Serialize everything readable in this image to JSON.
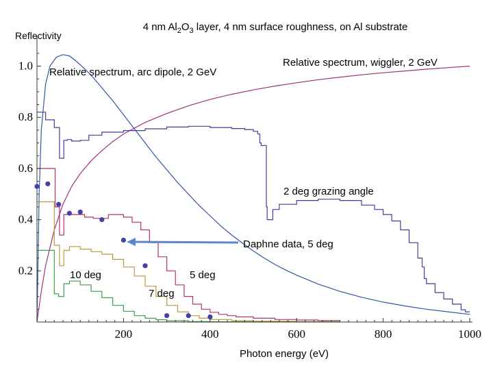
{
  "chart_data": {
    "type": "line",
    "title_parts": [
      "4 nm Al",
      "2",
      "O",
      "3",
      " layer, 4 nm surface roughness, on Al substrate"
    ],
    "xlabel": "Photon energy (eV)",
    "ylabel": "Reflectivity",
    "xlim": [
      0,
      1000
    ],
    "ylim": [
      0,
      1.05
    ],
    "x_ticks": [
      200,
      400,
      600,
      800,
      1000
    ],
    "y_ticks": [
      0.2,
      0.4,
      0.6,
      0.8,
      1.0
    ],
    "x_tick_labels": [
      "200",
      "400",
      "600",
      "800",
      "1000"
    ],
    "y_tick_labels": [
      "0.2",
      "0.4",
      "0.6",
      "0.8",
      "1.0"
    ],
    "grid": false,
    "series": [
      {
        "key": "dipole",
        "color": "#3355a6",
        "points": [
          [
            0,
            0
          ],
          [
            5,
            0.5
          ],
          [
            10,
            0.75
          ],
          [
            20,
            0.93
          ],
          [
            30,
            1.0
          ],
          [
            45,
            1.035
          ],
          [
            60,
            1.045
          ],
          [
            75,
            1.04
          ],
          [
            90,
            1.02
          ],
          [
            110,
            0.99
          ],
          [
            130,
            0.955
          ],
          [
            150,
            0.915
          ],
          [
            175,
            0.865
          ],
          [
            200,
            0.81
          ],
          [
            225,
            0.755
          ],
          [
            250,
            0.7
          ],
          [
            275,
            0.645
          ],
          [
            300,
            0.595
          ],
          [
            325,
            0.545
          ],
          [
            350,
            0.5
          ],
          [
            375,
            0.455
          ],
          [
            400,
            0.415
          ],
          [
            425,
            0.375
          ],
          [
            450,
            0.34
          ],
          [
            475,
            0.308
          ],
          [
            500,
            0.278
          ],
          [
            525,
            0.25
          ],
          [
            550,
            0.225
          ],
          [
            575,
            0.203
          ],
          [
            600,
            0.183
          ],
          [
            650,
            0.148
          ],
          [
            700,
            0.12
          ],
          [
            750,
            0.097
          ],
          [
            800,
            0.078
          ],
          [
            850,
            0.063
          ],
          [
            900,
            0.05
          ],
          [
            950,
            0.04
          ],
          [
            1000,
            0.03
          ]
        ]
      },
      {
        "key": "wiggler",
        "color": "#a0307a",
        "points": [
          [
            0,
            0
          ],
          [
            10,
            0.12
          ],
          [
            20,
            0.22
          ],
          [
            40,
            0.36
          ],
          [
            60,
            0.46
          ],
          [
            80,
            0.53
          ],
          [
            100,
            0.58
          ],
          [
            125,
            0.63
          ],
          [
            150,
            0.67
          ],
          [
            175,
            0.705
          ],
          [
            200,
            0.735
          ],
          [
            250,
            0.78
          ],
          [
            300,
            0.815
          ],
          [
            350,
            0.845
          ],
          [
            400,
            0.87
          ],
          [
            450,
            0.89
          ],
          [
            500,
            0.907
          ],
          [
            550,
            0.922
          ],
          [
            600,
            0.935
          ],
          [
            650,
            0.947
          ],
          [
            700,
            0.957
          ],
          [
            750,
            0.966
          ],
          [
            800,
            0.974
          ],
          [
            850,
            0.981
          ],
          [
            900,
            0.988
          ],
          [
            950,
            0.994
          ],
          [
            1000,
            1.0
          ]
        ]
      },
      {
        "key": "grazing2",
        "color": "#3f3f99",
        "step": true,
        "points": [
          [
            0,
            0.82
          ],
          [
            15,
            0.82
          ],
          [
            20,
            0.79
          ],
          [
            40,
            0.76
          ],
          [
            50,
            0.76
          ],
          [
            52,
            0.64
          ],
          [
            60,
            0.64
          ],
          [
            62,
            0.71
          ],
          [
            70,
            0.713
          ],
          [
            80,
            0.707
          ],
          [
            100,
            0.71
          ],
          [
            120,
            0.73
          ],
          [
            150,
            0.742
          ],
          [
            200,
            0.748
          ],
          [
            250,
            0.755
          ],
          [
            300,
            0.762
          ],
          [
            350,
            0.765
          ],
          [
            400,
            0.76
          ],
          [
            450,
            0.756
          ],
          [
            480,
            0.752
          ],
          [
            500,
            0.745
          ],
          [
            510,
            0.735
          ],
          [
            515,
            0.7
          ],
          [
            518,
            0.69
          ],
          [
            525,
            0.69
          ],
          [
            530,
            0.45
          ],
          [
            532,
            0.4
          ],
          [
            540,
            0.4
          ],
          [
            545,
            0.44
          ],
          [
            560,
            0.46
          ],
          [
            600,
            0.475
          ],
          [
            650,
            0.48
          ],
          [
            700,
            0.475
          ],
          [
            750,
            0.457
          ],
          [
            780,
            0.44
          ],
          [
            800,
            0.42
          ],
          [
            820,
            0.395
          ],
          [
            840,
            0.36
          ],
          [
            860,
            0.31
          ],
          [
            880,
            0.25
          ],
          [
            890,
            0.215
          ],
          [
            895,
            0.17
          ],
          [
            900,
            0.15
          ],
          [
            920,
            0.115
          ],
          [
            940,
            0.09
          ],
          [
            960,
            0.07
          ],
          [
            980,
            0.048
          ],
          [
            990,
            0.04
          ],
          [
            1000,
            0.04
          ]
        ]
      },
      {
        "key": "deg5",
        "color": "#b2336a",
        "step": true,
        "points": [
          [
            0,
            0.6
          ],
          [
            40,
            0.6
          ],
          [
            42,
            0.45
          ],
          [
            50,
            0.45
          ],
          [
            52,
            0.34
          ],
          [
            60,
            0.34
          ],
          [
            62,
            0.42
          ],
          [
            80,
            0.42
          ],
          [
            110,
            0.41
          ],
          [
            130,
            0.405
          ],
          [
            150,
            0.405
          ],
          [
            165,
            0.42
          ],
          [
            180,
            0.42
          ],
          [
            200,
            0.41
          ],
          [
            220,
            0.39
          ],
          [
            240,
            0.36
          ],
          [
            260,
            0.31
          ],
          [
            280,
            0.255
          ],
          [
            300,
            0.2
          ],
          [
            320,
            0.145
          ],
          [
            340,
            0.1
          ],
          [
            360,
            0.07
          ],
          [
            380,
            0.05
          ],
          [
            400,
            0.038
          ],
          [
            420,
            0.03
          ],
          [
            440,
            0.025
          ],
          [
            460,
            0.02
          ],
          [
            500,
            0.015
          ],
          [
            550,
            0.01
          ],
          [
            600,
            0.008
          ],
          [
            650,
            0.006
          ],
          [
            700,
            0.005
          ]
        ]
      },
      {
        "key": "deg7",
        "color": "#b59a3a",
        "step": true,
        "points": [
          [
            0,
            0.47
          ],
          [
            38,
            0.47
          ],
          [
            40,
            0.3
          ],
          [
            50,
            0.3
          ],
          [
            52,
            0.22
          ],
          [
            60,
            0.22
          ],
          [
            62,
            0.28
          ],
          [
            75,
            0.295
          ],
          [
            100,
            0.285
          ],
          [
            125,
            0.275
          ],
          [
            150,
            0.265
          ],
          [
            175,
            0.245
          ],
          [
            200,
            0.215
          ],
          [
            225,
            0.18
          ],
          [
            250,
            0.14
          ],
          [
            275,
            0.1
          ],
          [
            300,
            0.065
          ],
          [
            325,
            0.04
          ],
          [
            350,
            0.025
          ],
          [
            375,
            0.015
          ],
          [
            400,
            0.01
          ],
          [
            450,
            0.005
          ],
          [
            500,
            0.003
          ],
          [
            600,
            0.002
          ],
          [
            700,
            0.001
          ]
        ]
      },
      {
        "key": "deg10",
        "color": "#3aa04a",
        "step": true,
        "points": [
          [
            0,
            0.28
          ],
          [
            38,
            0.28
          ],
          [
            40,
            0.11
          ],
          [
            48,
            0.11
          ],
          [
            50,
            0.1
          ],
          [
            60,
            0.1
          ],
          [
            62,
            0.15
          ],
          [
            75,
            0.16
          ],
          [
            100,
            0.145
          ],
          [
            125,
            0.12
          ],
          [
            150,
            0.095
          ],
          [
            175,
            0.065
          ],
          [
            200,
            0.042
          ],
          [
            225,
            0.025
          ],
          [
            250,
            0.015
          ],
          [
            275,
            0.009
          ],
          [
            300,
            0.005
          ],
          [
            350,
            0.002
          ],
          [
            400,
            0.001
          ],
          [
            500,
            0.0005
          ],
          [
            700,
            0.0002
          ]
        ]
      }
    ],
    "scatter": {
      "name": "Daphne data, 5 deg",
      "color": "#4242a8",
      "points": [
        [
          0,
          0.53
        ],
        [
          25,
          0.54
        ],
        [
          50,
          0.46
        ],
        [
          75,
          0.425
        ],
        [
          100,
          0.43
        ],
        [
          150,
          0.4
        ],
        [
          200,
          0.32
        ],
        [
          250,
          0.22
        ],
        [
          300,
          0.025
        ],
        [
          350,
          0.025
        ],
        [
          400,
          0.02
        ]
      ]
    },
    "annotations": [
      {
        "key": "arc",
        "text": "Relative spectrum, arc dipole, 2 GeV"
      },
      {
        "key": "wig",
        "text": "Relative spectrum, wiggler, 2 GeV"
      },
      {
        "key": "g2",
        "text": "2 deg grazing angle"
      },
      {
        "key": "daphne",
        "text": "Daphne data, 5 deg"
      },
      {
        "key": "d5",
        "text": "5 deg"
      },
      {
        "key": "d7",
        "text": "7 deg"
      },
      {
        "key": "d10",
        "text": "10 deg"
      }
    ],
    "arrow_color": "#5b87c8"
  }
}
